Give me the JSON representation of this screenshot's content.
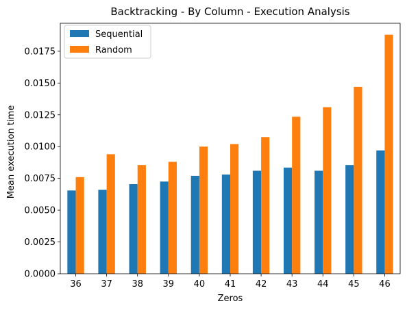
{
  "chart_data": {
    "type": "bar",
    "title": "Backtracking - By Column - Execution Analysis",
    "xlabel": "Zeros",
    "ylabel": "Mean execution time",
    "categories": [
      "36",
      "37",
      "38",
      "39",
      "40",
      "41",
      "42",
      "43",
      "44",
      "45",
      "46"
    ],
    "series": [
      {
        "name": "Sequential",
        "color": "#1f77b4",
        "values": [
          0.00655,
          0.0066,
          0.00705,
          0.00725,
          0.0077,
          0.0078,
          0.0081,
          0.00835,
          0.0081,
          0.00855,
          0.0097
        ]
      },
      {
        "name": "Random",
        "color": "#ff7f0e",
        "values": [
          0.0076,
          0.0094,
          0.00855,
          0.0088,
          0.01,
          0.0102,
          0.01075,
          0.01235,
          0.0131,
          0.0147,
          0.0188
        ]
      }
    ],
    "ylim": [
      0,
      0.0197
    ],
    "yticks": [
      "0.0000",
      "0.0025",
      "0.0050",
      "0.0075",
      "0.0100",
      "0.0125",
      "0.0150",
      "0.0175"
    ],
    "ytick_values": [
      0,
      0.0025,
      0.005,
      0.0075,
      0.01,
      0.0125,
      0.015,
      0.0175
    ],
    "grid": false,
    "legend_position": "upper-left"
  }
}
